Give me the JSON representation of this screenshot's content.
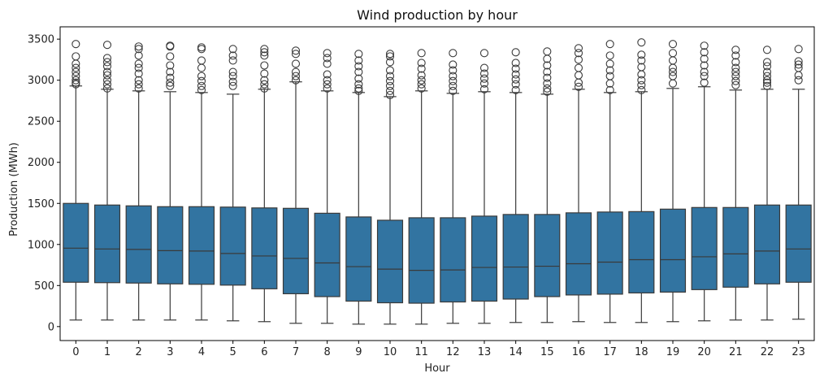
{
  "chart_data": {
    "type": "boxplot",
    "title": "Wind production by hour",
    "xlabel": "Hour",
    "ylabel": "Production (MWh)",
    "ylim": [
      -170,
      3650
    ],
    "yticks": [
      0,
      500,
      1000,
      1500,
      2000,
      2500,
      3000,
      3500
    ],
    "grid": false,
    "colors": {
      "box_fill": "#3274a1",
      "line": "#3a3a3a",
      "outlier": "#3a3a3a",
      "axis": "#000000"
    },
    "categories": [
      "0",
      "1",
      "2",
      "3",
      "4",
      "5",
      "6",
      "7",
      "8",
      "9",
      "10",
      "11",
      "12",
      "13",
      "14",
      "15",
      "16",
      "17",
      "18",
      "19",
      "20",
      "21",
      "22",
      "23"
    ],
    "boxes": [
      {
        "hour": "0",
        "whisker_low": 80,
        "q1": 540,
        "median": 955,
        "q3": 1500,
        "whisker_high": 2930,
        "outliers": [
          2950,
          2970,
          3000,
          3050,
          3100,
          3150,
          3200,
          3290,
          3440
        ]
      },
      {
        "hour": "1",
        "whisker_low": 80,
        "q1": 535,
        "median": 945,
        "q3": 1480,
        "whisker_high": 2890,
        "outliers": [
          2900,
          2950,
          3000,
          3060,
          3100,
          3170,
          3220,
          3270,
          3430
        ]
      },
      {
        "hour": "2",
        "whisker_low": 80,
        "q1": 530,
        "median": 940,
        "q3": 1470,
        "whisker_high": 2870,
        "outliers": [
          2900,
          2950,
          3000,
          3080,
          3150,
          3200,
          3300,
          3380,
          3410
        ]
      },
      {
        "hour": "3",
        "whisker_low": 80,
        "q1": 520,
        "median": 925,
        "q3": 1460,
        "whisker_high": 2860,
        "outliers": [
          2930,
          2970,
          3030,
          3100,
          3180,
          3290,
          3410,
          3420
        ]
      },
      {
        "hour": "4",
        "whisker_low": 80,
        "q1": 515,
        "median": 920,
        "q3": 1460,
        "whisker_high": 2850,
        "outliers": [
          2880,
          2930,
          2990,
          3050,
          3150,
          3240,
          3380,
          3400
        ]
      },
      {
        "hour": "5",
        "whisker_low": 70,
        "q1": 505,
        "median": 890,
        "q3": 1455,
        "whisker_high": 2830,
        "outliers": [
          2930,
          2980,
          3050,
          3100,
          3240,
          3300,
          3380
        ]
      },
      {
        "hour": "6",
        "whisker_low": 60,
        "q1": 460,
        "median": 860,
        "q3": 1445,
        "whisker_high": 2890,
        "outliers": [
          2900,
          2950,
          3000,
          3080,
          3180,
          3300,
          3340,
          3380
        ]
      },
      {
        "hour": "7",
        "whisker_low": 40,
        "q1": 400,
        "median": 830,
        "q3": 1440,
        "whisker_high": 2980,
        "outliers": [
          3000,
          3050,
          3100,
          3200,
          3320,
          3360
        ]
      },
      {
        "hour": "8",
        "whisker_low": 40,
        "q1": 365,
        "median": 775,
        "q3": 1380,
        "whisker_high": 2870,
        "outliers": [
          2900,
          2950,
          3000,
          3070,
          3200,
          3270,
          3330
        ]
      },
      {
        "hour": "9",
        "whisker_low": 30,
        "q1": 310,
        "median": 730,
        "q3": 1335,
        "whisker_high": 2850,
        "outliers": [
          2870,
          2900,
          2950,
          3020,
          3100,
          3170,
          3240,
          3320
        ]
      },
      {
        "hour": "10",
        "whisker_low": 30,
        "q1": 290,
        "median": 700,
        "q3": 1295,
        "whisker_high": 2800,
        "outliers": [
          2820,
          2870,
          2930,
          2990,
          3050,
          3120,
          3220,
          3290,
          3320
        ]
      },
      {
        "hour": "11",
        "whisker_low": 30,
        "q1": 285,
        "median": 685,
        "q3": 1325,
        "whisker_high": 2870,
        "outliers": [
          2900,
          2950,
          3000,
          3060,
          3140,
          3210,
          3330
        ]
      },
      {
        "hour": "12",
        "whisker_low": 40,
        "q1": 300,
        "median": 690,
        "q3": 1325,
        "whisker_high": 2840,
        "outliers": [
          2870,
          2930,
          2990,
          3050,
          3120,
          3190,
          3330
        ]
      },
      {
        "hour": "13",
        "whisker_low": 40,
        "q1": 310,
        "median": 720,
        "q3": 1345,
        "whisker_high": 2860,
        "outliers": [
          2890,
          2960,
          3020,
          3080,
          3150,
          3330
        ]
      },
      {
        "hour": "14",
        "whisker_low": 50,
        "q1": 335,
        "median": 725,
        "q3": 1365,
        "whisker_high": 2850,
        "outliers": [
          2880,
          2950,
          3010,
          3070,
          3140,
          3210,
          3340
        ]
      },
      {
        "hour": "15",
        "whisker_low": 50,
        "q1": 365,
        "median": 735,
        "q3": 1365,
        "whisker_high": 2830,
        "outliers": [
          2860,
          2900,
          2960,
          3030,
          3100,
          3180,
          3260,
          3350
        ]
      },
      {
        "hour": "16",
        "whisker_low": 60,
        "q1": 385,
        "median": 765,
        "q3": 1385,
        "whisker_high": 2890,
        "outliers": [
          2920,
          2970,
          3060,
          3150,
          3250,
          3330,
          3390
        ]
      },
      {
        "hour": "17",
        "whisker_low": 50,
        "q1": 395,
        "median": 785,
        "q3": 1395,
        "whisker_high": 2850,
        "outliers": [
          2880,
          2960,
          3050,
          3120,
          3200,
          3300,
          3440
        ]
      },
      {
        "hour": "18",
        "whisker_low": 50,
        "q1": 410,
        "median": 815,
        "q3": 1400,
        "whisker_high": 2860,
        "outliers": [
          2880,
          2940,
          3000,
          3070,
          3160,
          3240,
          3310,
          3460
        ]
      },
      {
        "hour": "19",
        "whisker_low": 60,
        "q1": 420,
        "median": 815,
        "q3": 1430,
        "whisker_high": 2900,
        "outliers": [
          2960,
          3050,
          3100,
          3150,
          3240,
          3330,
          3440
        ]
      },
      {
        "hour": "20",
        "whisker_low": 70,
        "q1": 450,
        "median": 850,
        "q3": 1450,
        "whisker_high": 2920,
        "outliers": [
          2970,
          3050,
          3100,
          3180,
          3260,
          3340,
          3420
        ]
      },
      {
        "hour": "21",
        "whisker_low": 80,
        "q1": 480,
        "median": 885,
        "q3": 1450,
        "whisker_high": 2880,
        "outliers": [
          2940,
          2990,
          3050,
          3100,
          3150,
          3220,
          3300,
          3370
        ]
      },
      {
        "hour": "22",
        "whisker_low": 80,
        "q1": 520,
        "median": 920,
        "q3": 1480,
        "whisker_high": 2890,
        "outliers": [
          2930,
          2970,
          3000,
          3050,
          3100,
          3170,
          3220,
          3370
        ]
      },
      {
        "hour": "23",
        "whisker_low": 90,
        "q1": 540,
        "median": 945,
        "q3": 1480,
        "whisker_high": 2890,
        "outliers": [
          3000,
          3060,
          3150,
          3190,
          3230,
          3380
        ]
      }
    ]
  }
}
